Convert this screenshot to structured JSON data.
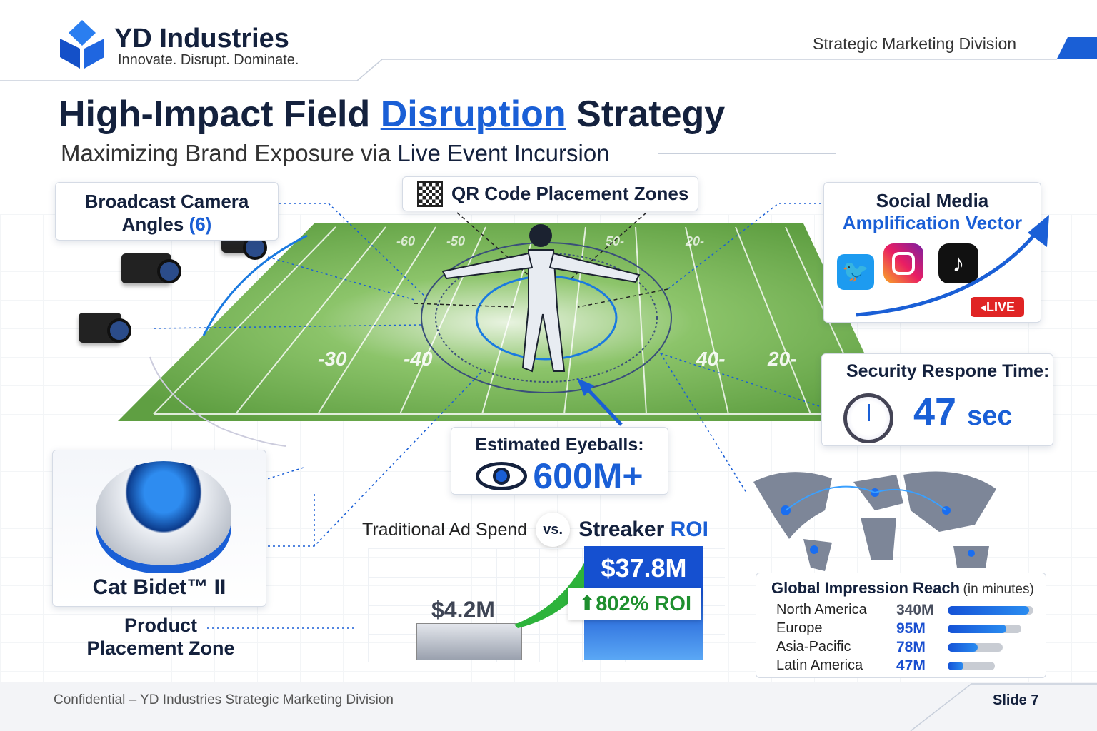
{
  "header": {
    "company": "YD Industries",
    "tagline": "Innovate. Disrupt. Dominate.",
    "division": "Strategic Marketing Division"
  },
  "title": {
    "part1": "High-Impact Field",
    "highlight": "Disruption",
    "part2": "Strategy",
    "subtitle_plain": "Maximizing Brand Exposure via",
    "subtitle_bold": "Live Event Incursion"
  },
  "callouts": {
    "cameras": {
      "line1": "Broadcast Camera",
      "line2": "Angles",
      "count": "(6)"
    },
    "qr": {
      "label": "QR Code Placement Zones"
    },
    "social": {
      "line1": "Social Media",
      "line2": "Amplification Vector",
      "live": "LIVE"
    },
    "security": {
      "label": "Security Respone Time:",
      "value": "47",
      "unit": "sec"
    },
    "eyeballs": {
      "label": "Estimated Eyeballs:",
      "value": "600M+"
    },
    "product": {
      "name": "Cat Bidet™ II",
      "zone_line1": "Product",
      "zone_line2": "Placement Zone"
    }
  },
  "field": {
    "yard_labels": [
      "-30",
      "-40",
      "40-",
      "20-",
      "-50",
      "-60",
      "50-",
      "20-"
    ]
  },
  "roi": {
    "left_label": "Traditional Ad Spend",
    "vs": "vs.",
    "right_label": "Streaker",
    "right_highlight": "ROI",
    "traditional_value": "$4.2M",
    "streaker_value": "$37.8M",
    "roi_badge": "802% ROI"
  },
  "reach": {
    "title": "Global Impression Reach",
    "unit": "(in minutes)",
    "rows": [
      {
        "region": "North America",
        "value": "340M",
        "fill": 0.95
      },
      {
        "region": "Europe",
        "value": "95M",
        "fill": 0.8
      },
      {
        "region": "Asia-Pacific",
        "value": "78M",
        "fill": 0.55
      },
      {
        "region": "Latin America",
        "value": "47M",
        "fill": 0.33
      }
    ]
  },
  "footer": {
    "confidential": "Confidential – YD Industries Strategic Marketing Division",
    "slide": "Slide 7"
  },
  "colors": {
    "navy": "#14213d",
    "blue": "#1a5fd6",
    "green": "#1e8f2e",
    "field": "#6fae4a"
  }
}
